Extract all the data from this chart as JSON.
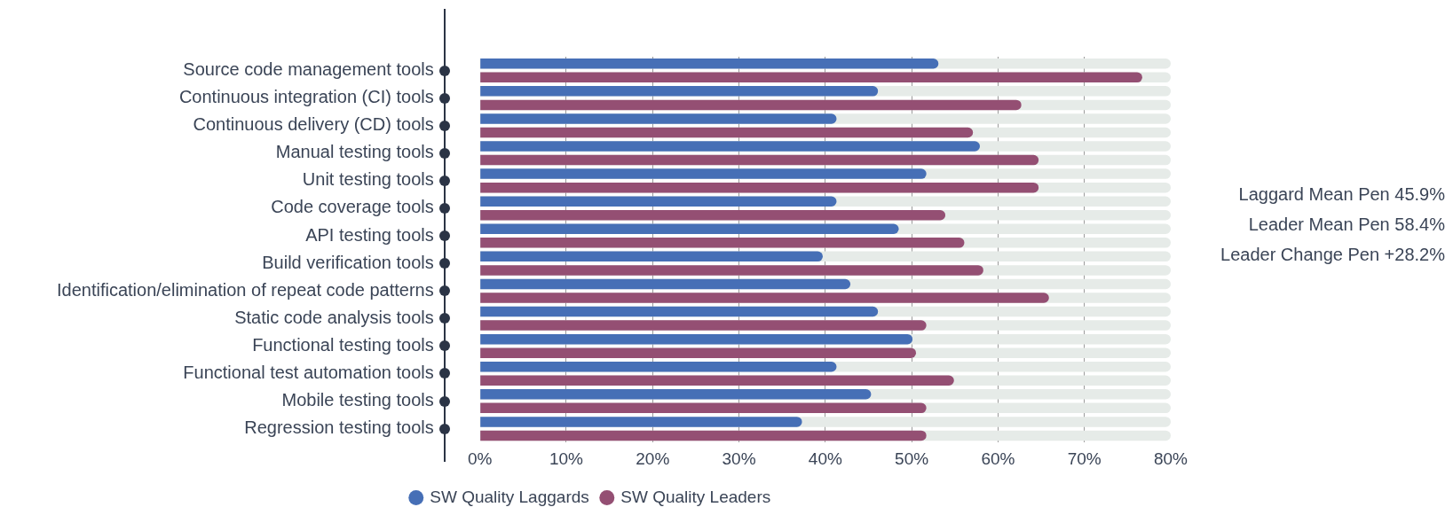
{
  "chart_data": {
    "type": "bar",
    "orientation": "horizontal",
    "categories": [
      "Source code management tools",
      "Continuous integration (CI) tools",
      "Continuous delivery (CD) tools",
      "Manual testing tools",
      "Unit testing tools",
      "Code coverage tools",
      "API testing tools",
      "Build verification tools",
      "Identification/elimination of repeat code patterns",
      "Static code analysis tools",
      "Functional testing tools",
      "Functional test automation tools",
      "Mobile testing tools",
      "Regression testing tools"
    ],
    "series": [
      {
        "name": "SW Quality Laggards",
        "color": "#466fb6",
        "values": [
          53.1,
          46.1,
          41.3,
          57.9,
          51.7,
          41.3,
          48.5,
          39.7,
          42.9,
          46.1,
          50.1,
          41.3,
          45.3,
          37.3
        ]
      },
      {
        "name": "SW Quality Leaders",
        "color": "#944f73",
        "values": [
          76.7,
          62.7,
          57.1,
          64.7,
          64.7,
          53.9,
          56.1,
          58.3,
          65.9,
          51.7,
          50.5,
          54.9,
          51.7,
          51.7
        ]
      }
    ],
    "xlim": [
      0,
      80
    ],
    "xticks": [
      {
        "value": 0,
        "label": "0%"
      },
      {
        "value": 10,
        "label": "10%"
      },
      {
        "value": 20,
        "label": "20%"
      },
      {
        "value": 30,
        "label": "30%"
      },
      {
        "value": 40,
        "label": "40%"
      },
      {
        "value": 50,
        "label": "50%"
      },
      {
        "value": 60,
        "label": "60%"
      },
      {
        "value": 70,
        "label": "70%"
      },
      {
        "value": 80,
        "label": "80%"
      }
    ],
    "grid": "x",
    "legend": "bottom",
    "marker": "circle",
    "annotations": [
      "Laggard Mean Pen 45.9%",
      "Leader Mean Pen 58.4%",
      "Leader Change Pen +28.2%"
    ]
  }
}
